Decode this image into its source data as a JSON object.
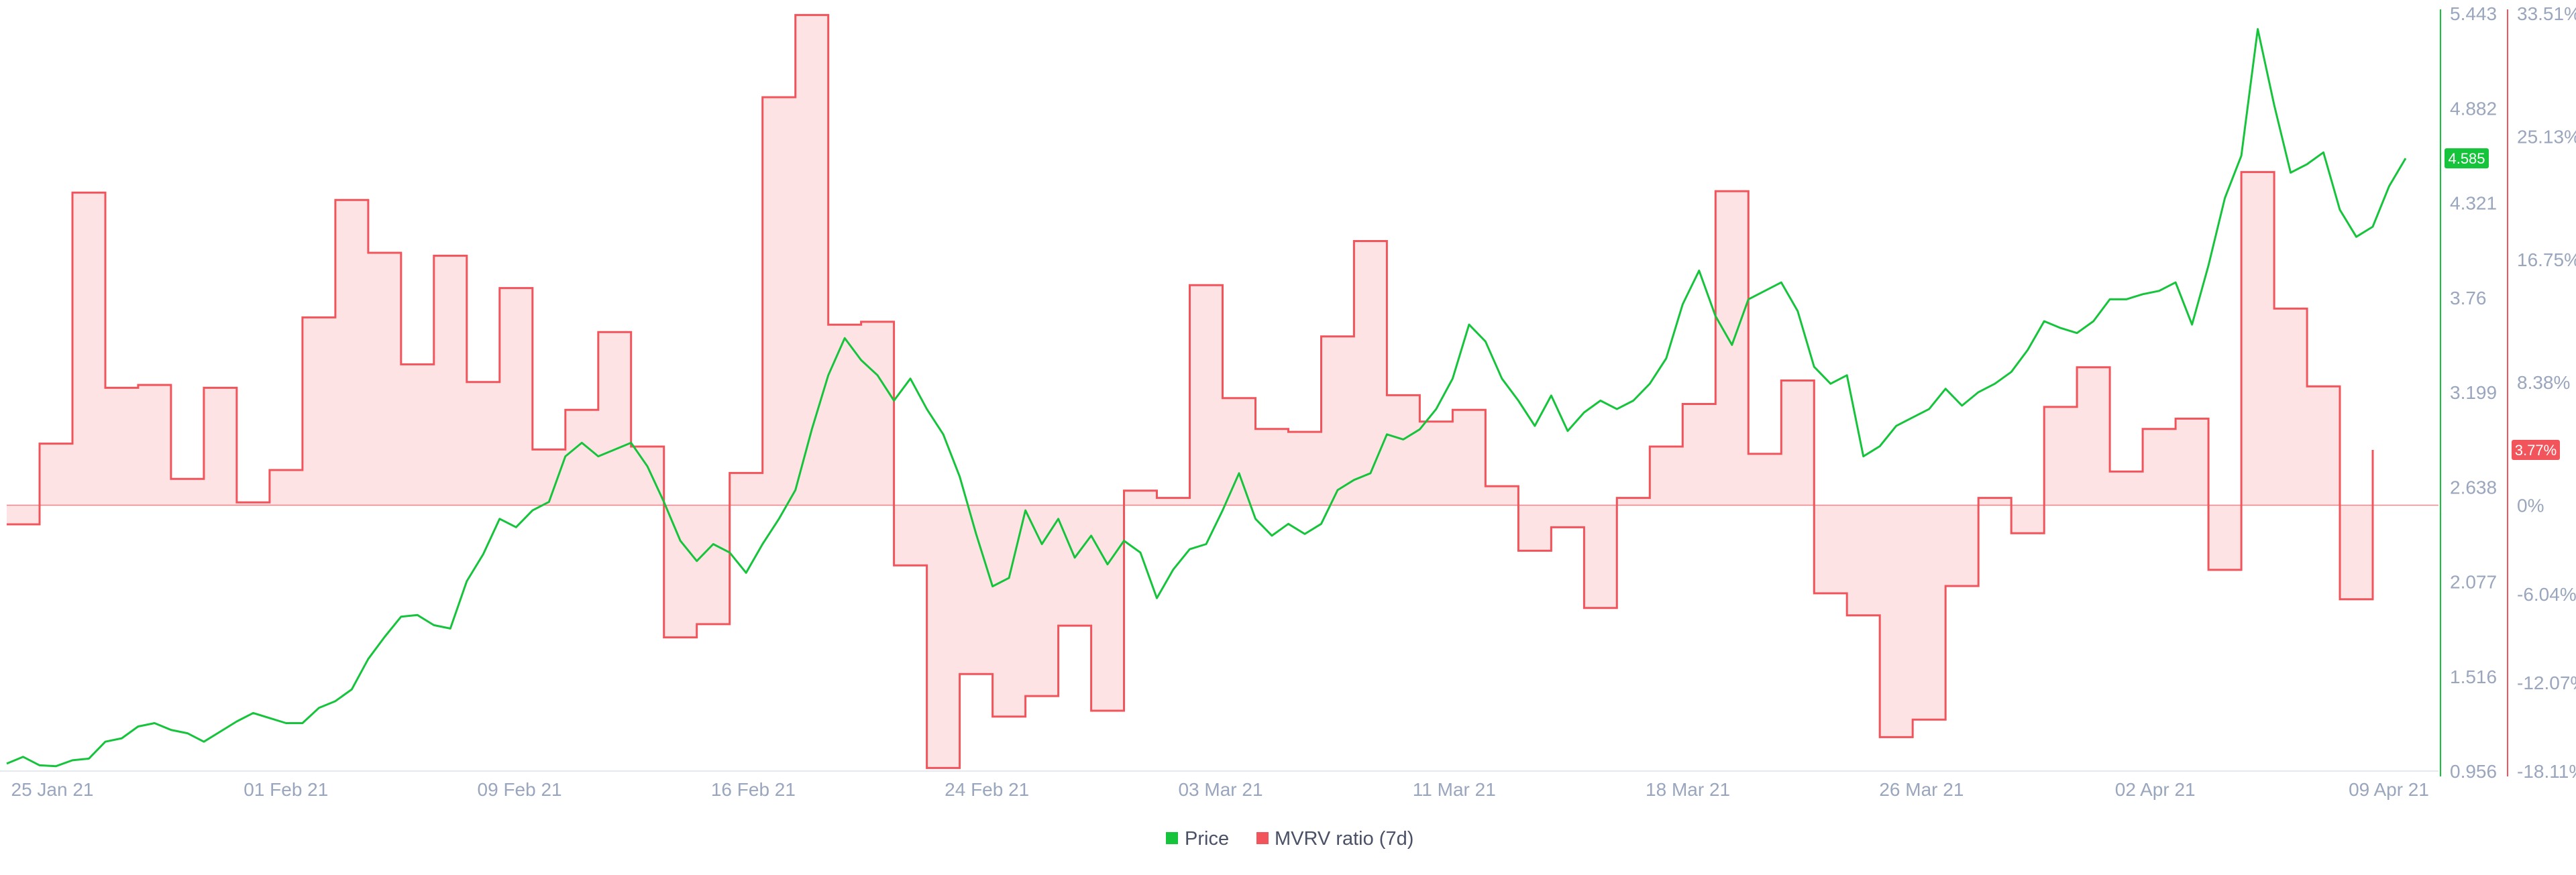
{
  "chart_data": {
    "type": "line",
    "title": "",
    "x_ticks": [
      "25 Jan 21",
      "01 Feb 21",
      "09 Feb 21",
      "16 Feb 21",
      "24 Feb 21",
      "03 Mar 21",
      "11 Mar 21",
      "18 Mar 21",
      "26 Mar 21",
      "02 Apr 21",
      "09 Apr 21"
    ],
    "x_range": [
      "2021-01-25",
      "2021-04-09"
    ],
    "price_axis": {
      "ticks": [
        "5.443",
        "4.882",
        "4.321",
        "3.76",
        "3.199",
        "2.638",
        "2.077",
        "1.516",
        "0.956"
      ],
      "range": [
        0.956,
        5.443
      ],
      "color": "#16c43c"
    },
    "mvrv_axis": {
      "ticks": [
        "33.51%",
        "25.13%",
        "16.75%",
        "8.38%",
        "0%",
        "-6.04%",
        "-12.07%",
        "-18.11%"
      ],
      "range": [
        -18.11,
        33.51
      ],
      "color": "#f2545b"
    },
    "current_badges": {
      "price": "4.585",
      "mvrv": "3.77%"
    },
    "legend": {
      "price": "Price",
      "mvrv": "MVRV ratio (7d)"
    },
    "series": [
      {
        "name": "Price",
        "axis": "price",
        "color": "#16c43c",
        "points": [
          [
            "2021-01-25",
            1.0
          ],
          [
            "2021-01-25T12",
            1.04
          ],
          [
            "2021-01-26",
            0.99
          ],
          [
            "2021-01-26T12",
            0.985
          ],
          [
            "2021-01-27",
            1.02
          ],
          [
            "2021-01-27T12",
            1.03
          ],
          [
            "2021-01-28",
            1.13
          ],
          [
            "2021-01-28T12",
            1.15
          ],
          [
            "2021-01-29",
            1.22
          ],
          [
            "2021-01-29T12",
            1.24
          ],
          [
            "2021-01-30",
            1.2
          ],
          [
            "2021-01-30T12",
            1.18
          ],
          [
            "2021-01-31",
            1.13
          ],
          [
            "2021-01-31T12",
            1.19
          ],
          [
            "2021-02-01",
            1.25
          ],
          [
            "2021-02-01T12",
            1.3
          ],
          [
            "2021-02-02",
            1.27
          ],
          [
            "2021-02-02T12",
            1.24
          ],
          [
            "2021-02-03",
            1.24
          ],
          [
            "2021-02-03T12",
            1.33
          ],
          [
            "2021-02-04",
            1.37
          ],
          [
            "2021-02-04T12",
            1.44
          ],
          [
            "2021-02-05",
            1.62
          ],
          [
            "2021-02-05T12",
            1.75
          ],
          [
            "2021-02-06",
            1.87
          ],
          [
            "2021-02-06T12",
            1.88
          ],
          [
            "2021-02-07",
            1.82
          ],
          [
            "2021-02-07T12",
            1.8
          ],
          [
            "2021-02-08",
            2.08
          ],
          [
            "2021-02-08T12",
            2.24
          ],
          [
            "2021-02-09",
            2.45
          ],
          [
            "2021-02-09T12",
            2.4
          ],
          [
            "2021-02-10",
            2.5
          ],
          [
            "2021-02-10T12",
            2.55
          ],
          [
            "2021-02-11",
            2.82
          ],
          [
            "2021-02-11T12",
            2.9
          ],
          [
            "2021-02-12",
            2.82
          ],
          [
            "2021-02-12T12",
            2.86
          ],
          [
            "2021-02-13",
            2.9
          ],
          [
            "2021-02-13T12",
            2.76
          ],
          [
            "2021-02-14",
            2.55
          ],
          [
            "2021-02-14T12",
            2.32
          ],
          [
            "2021-02-15",
            2.2
          ],
          [
            "2021-02-15T12",
            2.3
          ],
          [
            "2021-02-16",
            2.25
          ],
          [
            "2021-02-16T12",
            2.13
          ],
          [
            "2021-02-17",
            2.3
          ],
          [
            "2021-02-17T12",
            2.45
          ],
          [
            "2021-02-18",
            2.62
          ],
          [
            "2021-02-18T12",
            2.98
          ],
          [
            "2021-02-19",
            3.3
          ],
          [
            "2021-02-19T12",
            3.52
          ],
          [
            "2021-02-20",
            3.39
          ],
          [
            "2021-02-20T12",
            3.3
          ],
          [
            "2021-02-21",
            3.15
          ],
          [
            "2021-02-21T12",
            3.28
          ],
          [
            "2021-02-22",
            3.1
          ],
          [
            "2021-02-22T12",
            2.95
          ],
          [
            "2021-02-23",
            2.7
          ],
          [
            "2021-02-23T12",
            2.36
          ],
          [
            "2021-02-24",
            2.05
          ],
          [
            "2021-02-24T12",
            2.1
          ],
          [
            "2021-02-25",
            2.5
          ],
          [
            "2021-02-25T12",
            2.3
          ],
          [
            "2021-02-26",
            2.45
          ],
          [
            "2021-02-26T12",
            2.22
          ],
          [
            "2021-02-27",
            2.35
          ],
          [
            "2021-02-27T12",
            2.18
          ],
          [
            "2021-02-28",
            2.32
          ],
          [
            "2021-02-28T12",
            2.25
          ],
          [
            "2021-03-01",
            1.98
          ],
          [
            "2021-03-01T12",
            2.15
          ],
          [
            "2021-03-02",
            2.27
          ],
          [
            "2021-03-02T12",
            2.3
          ],
          [
            "2021-03-03",
            2.5
          ],
          [
            "2021-03-03T12",
            2.72
          ],
          [
            "2021-03-04",
            2.45
          ],
          [
            "2021-03-04T12",
            2.35
          ],
          [
            "2021-03-05",
            2.42
          ],
          [
            "2021-03-05T12",
            2.36
          ],
          [
            "2021-03-06",
            2.42
          ],
          [
            "2021-03-06T12",
            2.62
          ],
          [
            "2021-03-07",
            2.68
          ],
          [
            "2021-03-07T12",
            2.72
          ],
          [
            "2021-03-08",
            2.95
          ],
          [
            "2021-03-08T12",
            2.92
          ],
          [
            "2021-03-09",
            2.98
          ],
          [
            "2021-03-09T12",
            3.1
          ],
          [
            "2021-03-10",
            3.28
          ],
          [
            "2021-03-10T12",
            3.6
          ],
          [
            "2021-03-11",
            3.5
          ],
          [
            "2021-03-11T12",
            3.28
          ],
          [
            "2021-03-12",
            3.15
          ],
          [
            "2021-03-12T12",
            3.0
          ],
          [
            "2021-03-13",
            3.18
          ],
          [
            "2021-03-13T12",
            2.97
          ],
          [
            "2021-03-14",
            3.08
          ],
          [
            "2021-03-14T12",
            3.15
          ],
          [
            "2021-03-15",
            3.1
          ],
          [
            "2021-03-15T12",
            3.15
          ],
          [
            "2021-03-16",
            3.25
          ],
          [
            "2021-03-16T12",
            3.4
          ],
          [
            "2021-03-17",
            3.72
          ],
          [
            "2021-03-17T12",
            3.92
          ],
          [
            "2021-03-18",
            3.65
          ],
          [
            "2021-03-18T12",
            3.48
          ],
          [
            "2021-03-19",
            3.75
          ],
          [
            "2021-03-19T12",
            3.8
          ],
          [
            "2021-03-20",
            3.85
          ],
          [
            "2021-03-20T12",
            3.68
          ],
          [
            "2021-03-21",
            3.35
          ],
          [
            "2021-03-21T12",
            3.25
          ],
          [
            "2021-03-22",
            3.3
          ],
          [
            "2021-03-22T12",
            2.82
          ],
          [
            "2021-03-23",
            2.88
          ],
          [
            "2021-03-23T12",
            3.0
          ],
          [
            "2021-03-24",
            3.05
          ],
          [
            "2021-03-24T12",
            3.1
          ],
          [
            "2021-03-25",
            3.22
          ],
          [
            "2021-03-25T12",
            3.12
          ],
          [
            "2021-03-26",
            3.2
          ],
          [
            "2021-03-26T12",
            3.25
          ],
          [
            "2021-03-27",
            3.32
          ],
          [
            "2021-03-27T12",
            3.45
          ],
          [
            "2021-03-28",
            3.62
          ],
          [
            "2021-03-28T12",
            3.58
          ],
          [
            "2021-03-29",
            3.55
          ],
          [
            "2021-03-29T12",
            3.62
          ],
          [
            "2021-03-30",
            3.75
          ],
          [
            "2021-03-30T12",
            3.75
          ],
          [
            "2021-03-31",
            3.78
          ],
          [
            "2021-03-31T12",
            3.8
          ],
          [
            "2021-04-01",
            3.85
          ],
          [
            "2021-04-01T12",
            3.6
          ],
          [
            "2021-04-02",
            3.95
          ],
          [
            "2021-04-02T12",
            4.35
          ],
          [
            "2021-04-03",
            4.6
          ],
          [
            "2021-04-03T12",
            5.35
          ],
          [
            "2021-04-04",
            4.9
          ],
          [
            "2021-04-04T12",
            4.5
          ],
          [
            "2021-04-05",
            4.55
          ],
          [
            "2021-04-05T12",
            4.62
          ],
          [
            "2021-04-06",
            4.28
          ],
          [
            "2021-04-06T12",
            4.12
          ],
          [
            "2021-04-07",
            4.18
          ],
          [
            "2021-04-07T12",
            4.42
          ],
          [
            "2021-04-08",
            4.585
          ]
        ]
      },
      {
        "name": "MVRV ratio (7d)",
        "axis": "mvrv",
        "color": "#f2545b",
        "fill": "#fde3e4",
        "points": [
          [
            "2021-01-25",
            -1.3
          ],
          [
            "2021-01-26",
            4.2
          ],
          [
            "2021-01-27",
            21.3
          ],
          [
            "2021-01-28",
            8.0
          ],
          [
            "2021-01-29",
            8.2
          ],
          [
            "2021-01-30",
            1.8
          ],
          [
            "2021-01-31",
            8.0
          ],
          [
            "2021-02-01",
            0.2
          ],
          [
            "2021-02-02",
            2.4
          ],
          [
            "2021-02-03",
            12.8
          ],
          [
            "2021-02-04",
            20.8
          ],
          [
            "2021-02-05",
            17.2
          ],
          [
            "2021-02-06",
            9.6
          ],
          [
            "2021-02-07",
            17.0
          ],
          [
            "2021-02-08",
            8.4
          ],
          [
            "2021-02-09",
            14.8
          ],
          [
            "2021-02-10",
            3.8
          ],
          [
            "2021-02-11",
            6.5
          ],
          [
            "2021-02-12",
            11.8
          ],
          [
            "2021-02-13",
            4.0
          ],
          [
            "2021-02-14",
            -9.0
          ],
          [
            "2021-02-15",
            -8.1
          ],
          [
            "2021-02-16",
            2.2
          ],
          [
            "2021-02-17",
            27.8
          ],
          [
            "2021-02-18",
            33.4
          ],
          [
            "2021-02-19",
            12.3
          ],
          [
            "2021-02-20",
            12.5
          ],
          [
            "2021-02-21",
            -4.1
          ],
          [
            "2021-02-22",
            -17.9
          ],
          [
            "2021-02-23",
            -11.5
          ],
          [
            "2021-02-24",
            -14.4
          ],
          [
            "2021-02-25",
            -13.0
          ],
          [
            "2021-02-26",
            -8.2
          ],
          [
            "2021-02-27",
            -14.0
          ],
          [
            "2021-02-28",
            1.0
          ],
          [
            "2021-03-01",
            0.5
          ],
          [
            "2021-03-02",
            15.0
          ],
          [
            "2021-03-03",
            7.3
          ],
          [
            "2021-03-04",
            5.2
          ],
          [
            "2021-03-05",
            5.0
          ],
          [
            "2021-03-06",
            11.5
          ],
          [
            "2021-03-07",
            18.0
          ],
          [
            "2021-03-08",
            7.5
          ],
          [
            "2021-03-09",
            5.7
          ],
          [
            "2021-03-10",
            6.5
          ],
          [
            "2021-03-11",
            1.3
          ],
          [
            "2021-03-12",
            -3.1
          ],
          [
            "2021-03-13",
            -1.5
          ],
          [
            "2021-03-14",
            -7.0
          ],
          [
            "2021-03-15",
            0.5
          ],
          [
            "2021-03-16",
            4.0
          ],
          [
            "2021-03-17",
            6.9
          ],
          [
            "2021-03-18",
            21.4
          ],
          [
            "2021-03-19",
            3.5
          ],
          [
            "2021-03-20",
            8.5
          ],
          [
            "2021-03-21",
            -6.0
          ],
          [
            "2021-03-22",
            -7.5
          ],
          [
            "2021-03-23",
            -15.8
          ],
          [
            "2021-03-24",
            -14.6
          ],
          [
            "2021-03-25",
            -5.5
          ],
          [
            "2021-03-26",
            0.5
          ],
          [
            "2021-03-27",
            -1.9
          ],
          [
            "2021-03-28",
            6.7
          ],
          [
            "2021-03-29",
            9.4
          ],
          [
            "2021-03-30",
            2.3
          ],
          [
            "2021-03-31",
            5.2
          ],
          [
            "2021-04-01",
            5.9
          ],
          [
            "2021-04-02",
            -4.4
          ],
          [
            "2021-04-03",
            22.7
          ],
          [
            "2021-04-04",
            13.4
          ],
          [
            "2021-04-05",
            8.1
          ],
          [
            "2021-04-06",
            -6.4
          ],
          [
            "2021-04-07",
            3.77
          ]
        ]
      }
    ]
  }
}
